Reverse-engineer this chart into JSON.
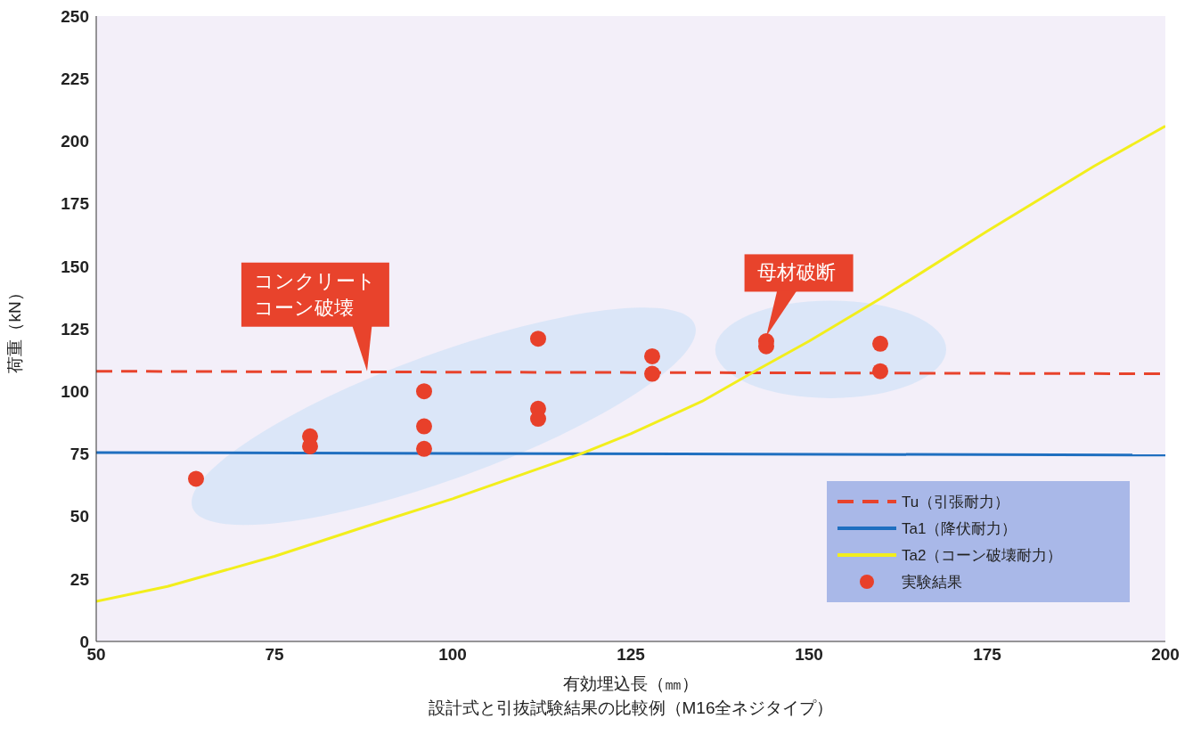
{
  "chart_data": {
    "type": "line",
    "xlabel": "有効埋込長（㎜）",
    "ylabel": "荷重（kN）",
    "xlim": [
      50,
      200
    ],
    "xticks": [
      50,
      75,
      100,
      125,
      150,
      175,
      200
    ],
    "ylim": [
      0,
      250
    ],
    "yticks": [
      0,
      25,
      50,
      75,
      100,
      125,
      150,
      175,
      200,
      225,
      250
    ],
    "grid": false,
    "legend": "bottom right",
    "series": [
      {
        "name": "Tu（引張耐力）",
        "color": "#e8432c",
        "line_style": "dashed",
        "marker": "none",
        "x": [
          50,
          200
        ],
        "values": [
          108,
          107
        ]
      },
      {
        "name": "Ta1（降伏耐力）",
        "color": "#1f6fc0",
        "line_style": "solid",
        "marker": "none",
        "x": [
          50,
          200
        ],
        "values": [
          75.5,
          74.5
        ]
      },
      {
        "name": "Ta2（コーン破壊耐力）",
        "color": "#f2ee1c",
        "line_style": "solid",
        "marker": "none",
        "x": [
          50,
          60,
          75,
          90,
          100,
          110,
          118,
          125,
          135,
          143,
          150,
          160,
          175,
          190,
          200
        ],
        "values": [
          16,
          22,
          34,
          48,
          57,
          67,
          75,
          83,
          96,
          109,
          120,
          137,
          164,
          190,
          206
        ]
      },
      {
        "name": "実験結果",
        "type": "scatter",
        "color": "#e8402a",
        "marker": "circle",
        "x": [
          64,
          80,
          80,
          96,
          96,
          96,
          112,
          112,
          112,
          128,
          128,
          144,
          144,
          160,
          160
        ],
        "values": [
          65,
          82,
          78,
          100,
          86,
          77,
          121,
          93,
          89,
          114,
          107,
          120,
          118,
          119,
          108
        ]
      }
    ],
    "annotations": [
      {
        "text": "コンクリートコーン破壊",
        "x": 88,
        "y": 108
      },
      {
        "text": "母材破断",
        "x": 144,
        "y": 122
      },
      "設計式と引抜試験結果の比較例（M16全ネジタイプ）"
    ]
  }
}
